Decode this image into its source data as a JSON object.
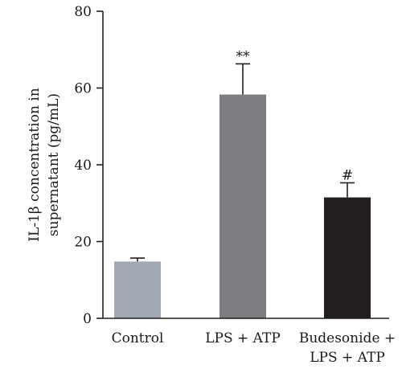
{
  "chart_data": {
    "type": "bar",
    "categories": [
      [
        "Control"
      ],
      [
        "LPS + ATP"
      ],
      [
        "Budesonide +",
        "LPS + ATP"
      ]
    ],
    "values": [
      14.8,
      58.3,
      31.5
    ],
    "errors": [
      0.9,
      8.0,
      3.8
    ],
    "annotations": [
      "",
      "**",
      "#"
    ],
    "bar_colors": [
      "#a2a9b5",
      "#7b7d80",
      "#231f20"
    ],
    "ylabel_lines": [
      "IL-1β concentration in",
      "supernatant (pg/mL)"
    ],
    "xlabel": "",
    "ylim": [
      0,
      80
    ],
    "yticks": [
      0,
      20,
      40,
      60,
      80
    ],
    "grid": false,
    "legend": "none"
  }
}
